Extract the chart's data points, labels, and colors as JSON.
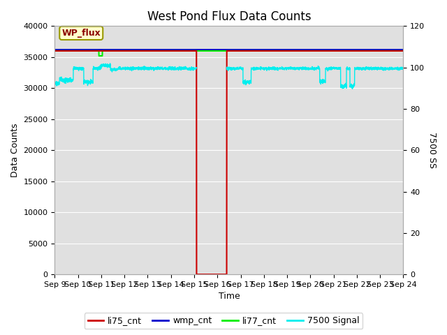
{
  "title": "West Pond Flux Data Counts",
  "xlabel": "Time",
  "ylabel_left": "Data Counts",
  "ylabel_right": "7500 SS",
  "annotation_text": "WP_flux",
  "annotation_box_color": "#ffffcc",
  "annotation_text_color": "#8b0000",
  "annotation_edge_color": "#999900",
  "ylim_left": [
    0,
    40000
  ],
  "ylim_right": [
    0,
    120
  ],
  "xtick_labels": [
    "Sep 9",
    "Sep 10",
    "Sep 11",
    "Sep 12",
    "Sep 13",
    "Sep 14",
    "Sep 15",
    "Sep 16",
    "Sep 17",
    "Sep 18",
    "Sep 19",
    "Sep 20",
    "Sep 21",
    "Sep 22",
    "Sep 23",
    "Sep 24"
  ],
  "background_color": "#e0e0e0",
  "grid_color": "#ffffff",
  "li77_value": 36000,
  "li77_color": "#00ee00",
  "wmp_color": "#0000cc",
  "li75_color": "#cc0000",
  "cyan_color": "#00eeee",
  "title_fontsize": 12,
  "legend_fontsize": 9,
  "axis_fontsize": 9,
  "tick_fontsize": 8
}
